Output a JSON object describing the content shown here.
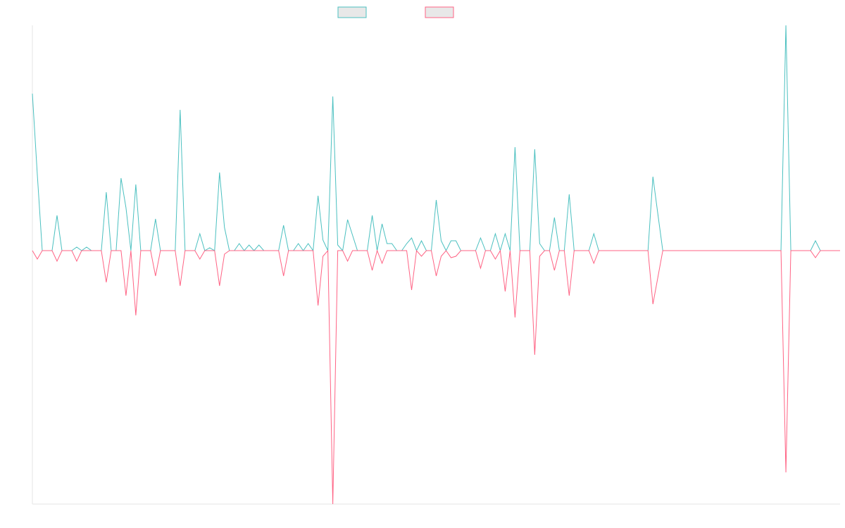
{
  "chart_data": {
    "type": "line",
    "ylim": [
      -360,
      320
    ],
    "legend": "top",
    "series": [
      {
        "color": "#4bc0c0",
        "values": [
          223,
          108,
          0,
          0,
          0,
          50,
          0,
          0,
          0,
          5,
          0,
          5,
          0,
          0,
          0,
          83,
          0,
          0,
          103,
          61,
          0,
          94,
          0,
          0,
          0,
          45,
          0,
          0,
          0,
          0,
          200,
          0,
          0,
          0,
          24,
          0,
          4,
          0,
          111,
          33,
          0,
          0,
          10,
          0,
          8,
          0,
          8,
          0,
          0,
          0,
          0,
          36,
          0,
          0,
          10,
          0,
          10,
          0,
          78,
          15,
          0,
          219,
          8,
          0,
          44,
          22,
          0,
          0,
          0,
          50,
          0,
          38,
          10,
          10,
          0,
          0,
          10,
          18,
          0,
          14,
          0,
          0,
          72,
          14,
          0,
          14,
          14,
          0,
          0,
          0,
          0,
          18,
          0,
          0,
          24,
          0,
          24,
          0,
          147,
          0,
          0,
          0,
          144,
          10,
          0,
          0,
          47,
          0,
          0,
          80,
          0,
          0,
          0,
          0,
          24,
          0,
          0,
          0,
          0,
          0,
          0,
          0,
          0,
          0,
          0,
          0,
          105,
          52,
          0,
          0,
          0,
          0,
          0,
          0,
          0,
          0,
          0,
          0,
          0,
          0,
          0,
          0,
          0,
          0,
          0,
          0,
          0,
          0,
          0,
          0,
          0,
          0,
          0,
          320,
          0,
          0,
          0,
          0,
          0,
          14,
          0,
          0,
          0,
          0,
          0
        ]
      },
      {
        "color": "#ff6384",
        "values": [
          0,
          -12,
          0,
          0,
          0,
          -15,
          0,
          0,
          0,
          -15,
          0,
          0,
          0,
          0,
          0,
          -45,
          0,
          0,
          0,
          -64,
          0,
          -92,
          0,
          0,
          0,
          -36,
          0,
          0,
          0,
          0,
          -50,
          0,
          0,
          0,
          -12,
          0,
          0,
          0,
          -50,
          -5,
          0,
          0,
          0,
          0,
          0,
          0,
          0,
          0,
          0,
          0,
          0,
          -36,
          0,
          0,
          0,
          0,
          0,
          0,
          -78,
          -8,
          0,
          -360,
          0,
          0,
          -15,
          0,
          0,
          0,
          0,
          -28,
          0,
          -18,
          0,
          0,
          0,
          0,
          0,
          -56,
          0,
          -8,
          0,
          0,
          -36,
          -8,
          0,
          -10,
          -8,
          0,
          0,
          0,
          0,
          -25,
          0,
          0,
          -12,
          0,
          -58,
          0,
          -95,
          0,
          0,
          0,
          -148,
          -8,
          0,
          0,
          -28,
          0,
          0,
          -64,
          0,
          0,
          0,
          0,
          -18,
          0,
          0,
          0,
          0,
          0,
          0,
          0,
          0,
          0,
          0,
          0,
          -76,
          -38,
          0,
          0,
          0,
          0,
          0,
          0,
          0,
          0,
          0,
          0,
          0,
          0,
          0,
          0,
          0,
          0,
          0,
          0,
          0,
          0,
          0,
          0,
          0,
          0,
          0,
          -315,
          0,
          0,
          0,
          0,
          0,
          -10,
          0,
          0,
          0,
          0,
          0
        ]
      }
    ]
  }
}
